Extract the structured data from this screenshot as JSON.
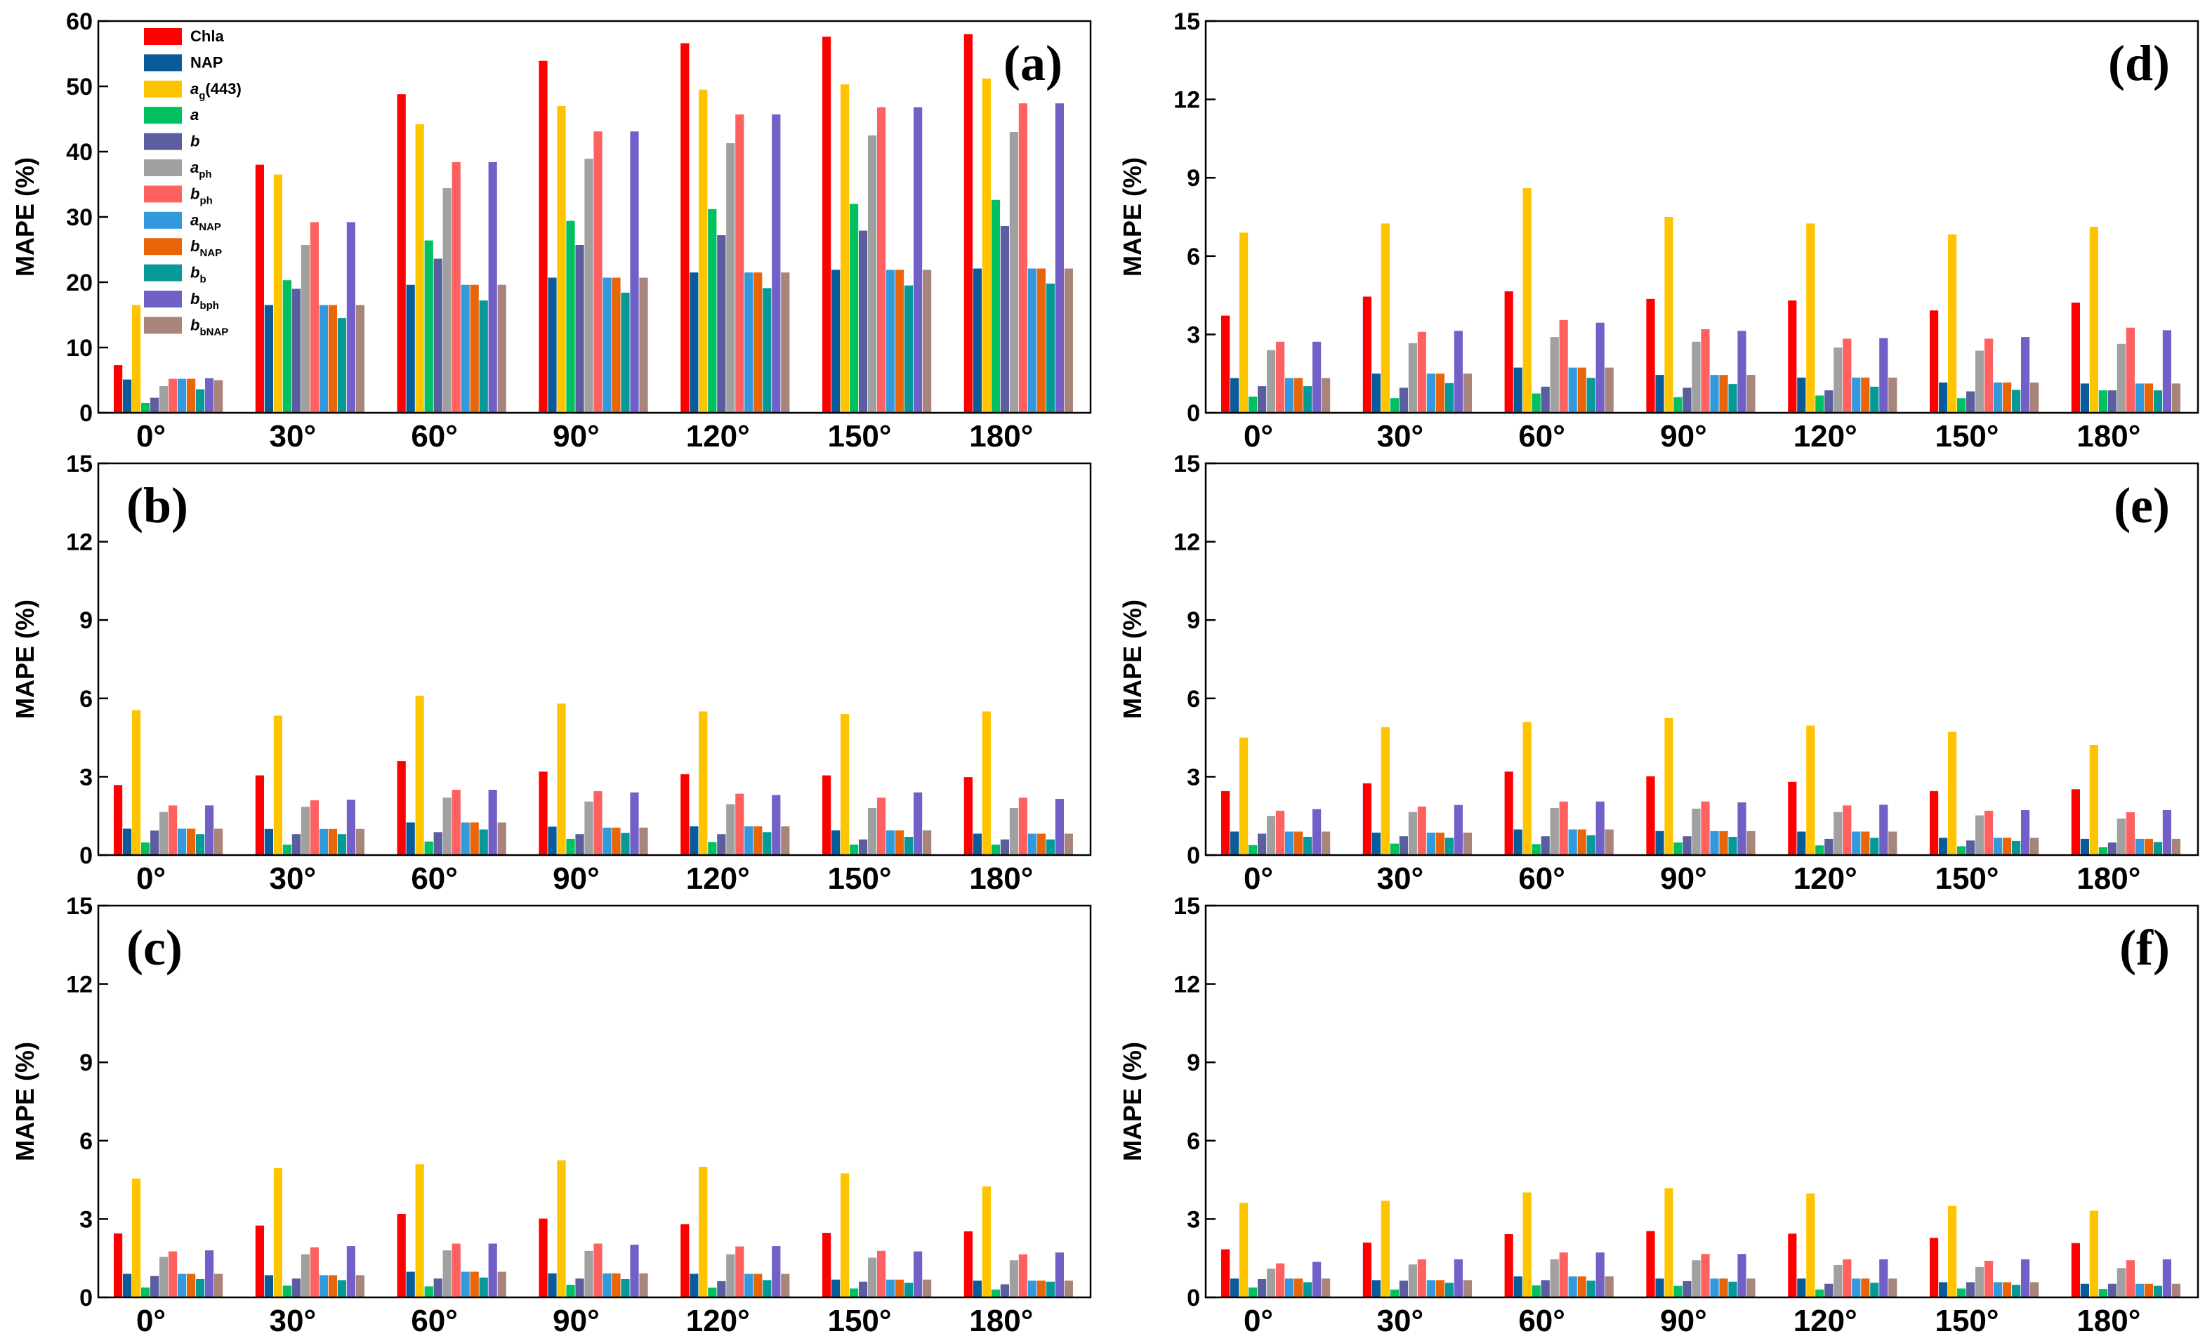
{
  "chart_data": {
    "type": "bar",
    "categories": [
      "0°",
      "30°",
      "60°",
      "90°",
      "120°",
      "150°",
      "180°"
    ],
    "ylabel": "MAPE (%)",
    "colors": [
      "#ff0000",
      "#0a5b9a",
      "#ffc400",
      "#00c060",
      "#5b5e9e",
      "#a0a0a0",
      "#ff6060",
      "#3399dd",
      "#e8650a",
      "#079898",
      "#7060c8",
      "#a8847a"
    ],
    "legend": {
      "placement": "top-left",
      "entries": [
        {
          "name": "Chla",
          "main": "Chla",
          "sub": "",
          "italic": false
        },
        {
          "name": "NAP",
          "main": "NAP",
          "sub": "",
          "italic": false
        },
        {
          "name": "a_g(443)",
          "main": "a",
          "sub": "g",
          "after": "(443)",
          "italic": true
        },
        {
          "name": "a",
          "main": "a",
          "sub": "",
          "italic": true
        },
        {
          "name": "b",
          "main": "b",
          "sub": "",
          "italic": true
        },
        {
          "name": "a_ph",
          "main": "a",
          "sub": "ph",
          "italic": true
        },
        {
          "name": "b_ph",
          "main": "b",
          "sub": "ph",
          "italic": true
        },
        {
          "name": "a_NAP",
          "main": "a",
          "sub": "NAP",
          "italic": true
        },
        {
          "name": "b_NAP",
          "main": "b",
          "sub": "NAP",
          "italic": true
        },
        {
          "name": "b_b",
          "main": "b",
          "sub": "b",
          "italic": true
        },
        {
          "name": "b_bph",
          "main": "b",
          "sub": "bph",
          "italic": true
        },
        {
          "name": "b_bNAP",
          "main": "b",
          "sub": "bNAP",
          "italic": true
        }
      ]
    },
    "panels": [
      {
        "label": "(a)",
        "ylim": [
          0,
          60
        ],
        "yticks": [
          0,
          10,
          20,
          30,
          40,
          50,
          60
        ],
        "values": [
          [
            7.3,
            5.1,
            16.5,
            1.5,
            2.3,
            4.1,
            5.2,
            5.2,
            5.2,
            3.6,
            5.3,
            5.0
          ],
          [
            38.0,
            16.5,
            36.5,
            20.3,
            19.0,
            25.7,
            29.2,
            16.5,
            16.5,
            14.5,
            29.2,
            16.5
          ],
          [
            48.8,
            19.6,
            44.2,
            26.4,
            23.6,
            34.4,
            38.4,
            19.6,
            19.6,
            17.2,
            38.4,
            19.6
          ],
          [
            53.9,
            20.7,
            47.0,
            29.4,
            25.7,
            38.9,
            43.1,
            20.7,
            20.7,
            18.4,
            43.1,
            20.7
          ],
          [
            56.6,
            21.5,
            49.5,
            31.2,
            27.2,
            41.3,
            45.7,
            21.5,
            21.5,
            19.1,
            45.7,
            21.5
          ],
          [
            57.6,
            21.9,
            50.3,
            32.0,
            27.9,
            42.5,
            46.8,
            21.9,
            21.9,
            19.5,
            46.8,
            21.9
          ],
          [
            58.0,
            22.1,
            51.2,
            32.6,
            28.6,
            43.0,
            47.4,
            22.1,
            22.1,
            19.8,
            47.4,
            22.1
          ]
        ]
      },
      {
        "label": "(b)",
        "ylim": [
          0,
          15
        ],
        "yticks": [
          0,
          3,
          6,
          9,
          12,
          15
        ],
        "values": [
          [
            2.68,
            1.01,
            5.55,
            0.48,
            0.94,
            1.65,
            1.9,
            1.01,
            1.01,
            0.8,
            1.9,
            1.01
          ],
          [
            3.05,
            1.0,
            5.34,
            0.4,
            0.8,
            1.85,
            2.1,
            1.0,
            1.0,
            0.8,
            2.12,
            1.0
          ],
          [
            3.6,
            1.25,
            6.1,
            0.52,
            0.88,
            2.2,
            2.5,
            1.25,
            1.25,
            0.98,
            2.5,
            1.25
          ],
          [
            3.2,
            1.09,
            5.8,
            0.62,
            0.8,
            2.05,
            2.45,
            1.05,
            1.05,
            0.85,
            2.4,
            1.05
          ],
          [
            3.1,
            1.1,
            5.5,
            0.5,
            0.8,
            1.95,
            2.35,
            1.1,
            1.1,
            0.88,
            2.3,
            1.1
          ],
          [
            3.05,
            0.95,
            5.4,
            0.4,
            0.6,
            1.8,
            2.2,
            0.95,
            0.95,
            0.7,
            2.4,
            0.95
          ],
          [
            2.98,
            0.82,
            5.5,
            0.4,
            0.6,
            1.8,
            2.2,
            0.82,
            0.82,
            0.6,
            2.15,
            0.82
          ]
        ]
      },
      {
        "label": "(c)",
        "ylim": [
          0,
          15
        ],
        "yticks": [
          0,
          3,
          6,
          9,
          12,
          15
        ],
        "values": [
          [
            2.45,
            0.9,
            4.55,
            0.38,
            0.82,
            1.55,
            1.76,
            0.9,
            0.9,
            0.7,
            1.8,
            0.9
          ],
          [
            2.75,
            0.85,
            4.95,
            0.45,
            0.72,
            1.65,
            1.92,
            0.85,
            0.85,
            0.66,
            1.96,
            0.85
          ],
          [
            3.2,
            0.98,
            5.1,
            0.42,
            0.72,
            1.8,
            2.06,
            0.98,
            0.98,
            0.76,
            2.06,
            0.98
          ],
          [
            3.02,
            0.92,
            5.25,
            0.48,
            0.72,
            1.78,
            2.06,
            0.92,
            0.92,
            0.7,
            2.02,
            0.92
          ],
          [
            2.8,
            0.9,
            5.0,
            0.37,
            0.62,
            1.65,
            1.95,
            0.9,
            0.9,
            0.66,
            1.96,
            0.9
          ],
          [
            2.47,
            0.68,
            4.75,
            0.34,
            0.6,
            1.52,
            1.78,
            0.68,
            0.68,
            0.56,
            1.76,
            0.68
          ],
          [
            2.53,
            0.64,
            4.25,
            0.3,
            0.5,
            1.42,
            1.65,
            0.64,
            0.64,
            0.6,
            1.72,
            0.64
          ]
        ]
      },
      {
        "label": "(d)",
        "ylim": [
          0,
          15
        ],
        "yticks": [
          0,
          3,
          6,
          9,
          12,
          15
        ],
        "values": [
          [
            3.72,
            1.33,
            6.9,
            0.62,
            1.02,
            2.4,
            2.72,
            1.33,
            1.33,
            1.02,
            2.72,
            1.33
          ],
          [
            4.45,
            1.5,
            7.25,
            0.56,
            0.96,
            2.67,
            3.1,
            1.5,
            1.5,
            1.14,
            3.14,
            1.5
          ],
          [
            4.65,
            1.73,
            8.6,
            0.74,
            1.0,
            2.9,
            3.55,
            1.73,
            1.73,
            1.34,
            3.45,
            1.73
          ],
          [
            4.36,
            1.45,
            7.5,
            0.6,
            0.96,
            2.72,
            3.2,
            1.45,
            1.45,
            1.1,
            3.14,
            1.45
          ],
          [
            4.3,
            1.35,
            7.25,
            0.66,
            0.86,
            2.5,
            2.84,
            1.35,
            1.35,
            1.0,
            2.86,
            1.35
          ],
          [
            3.92,
            1.16,
            6.83,
            0.56,
            0.82,
            2.38,
            2.84,
            1.16,
            1.16,
            0.88,
            2.9,
            1.16
          ],
          [
            4.22,
            1.12,
            7.12,
            0.86,
            0.86,
            2.64,
            3.26,
            1.12,
            1.12,
            0.86,
            3.16,
            1.12
          ]
        ]
      },
      {
        "label": "(e)",
        "ylim": [
          0,
          15
        ],
        "yticks": [
          0,
          3,
          6,
          9,
          12,
          15
        ],
        "values": [
          [
            2.45,
            0.9,
            4.5,
            0.38,
            0.82,
            1.5,
            1.7,
            0.9,
            0.9,
            0.7,
            1.76,
            0.9
          ],
          [
            2.75,
            0.86,
            4.9,
            0.44,
            0.72,
            1.65,
            1.86,
            0.86,
            0.86,
            0.66,
            1.92,
            0.86
          ],
          [
            3.2,
            0.98,
            5.1,
            0.42,
            0.72,
            1.8,
            2.05,
            0.98,
            0.98,
            0.76,
            2.05,
            0.98
          ],
          [
            3.02,
            0.92,
            5.25,
            0.48,
            0.72,
            1.78,
            2.05,
            0.92,
            0.92,
            0.7,
            2.02,
            0.92
          ],
          [
            2.8,
            0.9,
            4.96,
            0.37,
            0.62,
            1.65,
            1.9,
            0.9,
            0.9,
            0.66,
            1.93,
            0.9
          ],
          [
            2.45,
            0.66,
            4.72,
            0.34,
            0.56,
            1.52,
            1.7,
            0.66,
            0.66,
            0.54,
            1.72,
            0.66
          ],
          [
            2.52,
            0.62,
            4.22,
            0.3,
            0.48,
            1.4,
            1.64,
            0.62,
            0.62,
            0.5,
            1.72,
            0.62
          ]
        ]
      },
      {
        "label": "(f)",
        "ylim": [
          0,
          15
        ],
        "yticks": [
          0,
          3,
          6,
          9,
          12,
          15
        ],
        "values": [
          [
            1.84,
            0.72,
            3.62,
            0.38,
            0.7,
            1.1,
            1.3,
            0.72,
            0.72,
            0.58,
            1.36,
            0.72
          ],
          [
            2.1,
            0.66,
            3.7,
            0.3,
            0.64,
            1.26,
            1.46,
            0.66,
            0.66,
            0.56,
            1.46,
            0.66
          ],
          [
            2.42,
            0.8,
            4.02,
            0.46,
            0.66,
            1.46,
            1.72,
            0.8,
            0.8,
            0.64,
            1.72,
            0.8
          ],
          [
            2.54,
            0.72,
            4.18,
            0.44,
            0.62,
            1.42,
            1.66,
            0.72,
            0.72,
            0.6,
            1.66,
            0.72
          ],
          [
            2.44,
            0.72,
            3.98,
            0.3,
            0.52,
            1.24,
            1.46,
            0.72,
            0.72,
            0.56,
            1.46,
            0.72
          ],
          [
            2.28,
            0.58,
            3.5,
            0.34,
            0.58,
            1.16,
            1.4,
            0.58,
            0.58,
            0.48,
            1.46,
            0.58
          ],
          [
            2.08,
            0.52,
            3.32,
            0.32,
            0.52,
            1.12,
            1.42,
            0.52,
            0.52,
            0.44,
            1.46,
            0.52
          ]
        ]
      }
    ]
  }
}
